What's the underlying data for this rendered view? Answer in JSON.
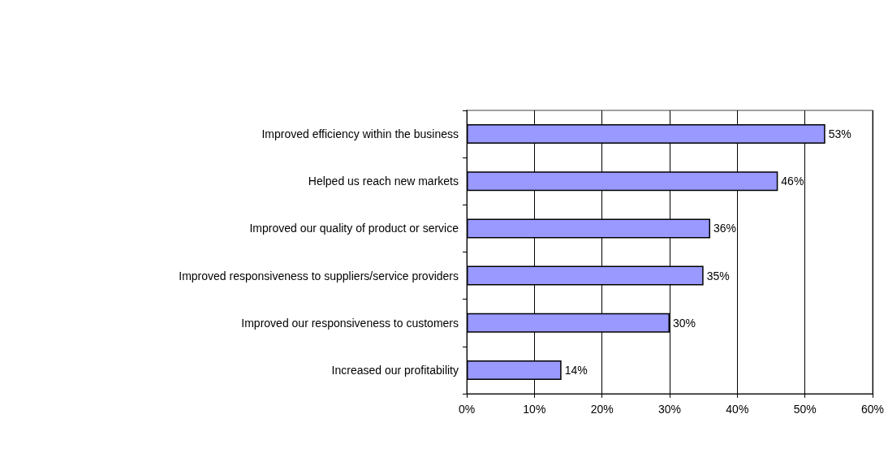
{
  "chart_data": {
    "type": "bar",
    "orientation": "horizontal",
    "categories": [
      "Improved efficiency within the business",
      "Helped us reach new markets",
      "Improved our quality of product or service",
      "Improved responsiveness to suppliers/service providers",
      "Improved our responsiveness to customers",
      "Increased our profitability"
    ],
    "values": [
      53,
      46,
      36,
      35,
      30,
      14
    ],
    "value_labels": [
      "53%",
      "46%",
      "36%",
      "35%",
      "30%",
      "14%"
    ],
    "color": "#9999ff",
    "xlim": [
      0,
      60
    ],
    "xticks": [
      {
        "value": 0,
        "label": "0%"
      },
      {
        "value": 10,
        "label": "10%"
      },
      {
        "value": 20,
        "label": "20%"
      },
      {
        "value": 30,
        "label": "30%"
      },
      {
        "value": 40,
        "label": "40%"
      },
      {
        "value": 50,
        "label": "50%"
      },
      {
        "value": 60,
        "label": "60%"
      }
    ],
    "grid": "x"
  }
}
